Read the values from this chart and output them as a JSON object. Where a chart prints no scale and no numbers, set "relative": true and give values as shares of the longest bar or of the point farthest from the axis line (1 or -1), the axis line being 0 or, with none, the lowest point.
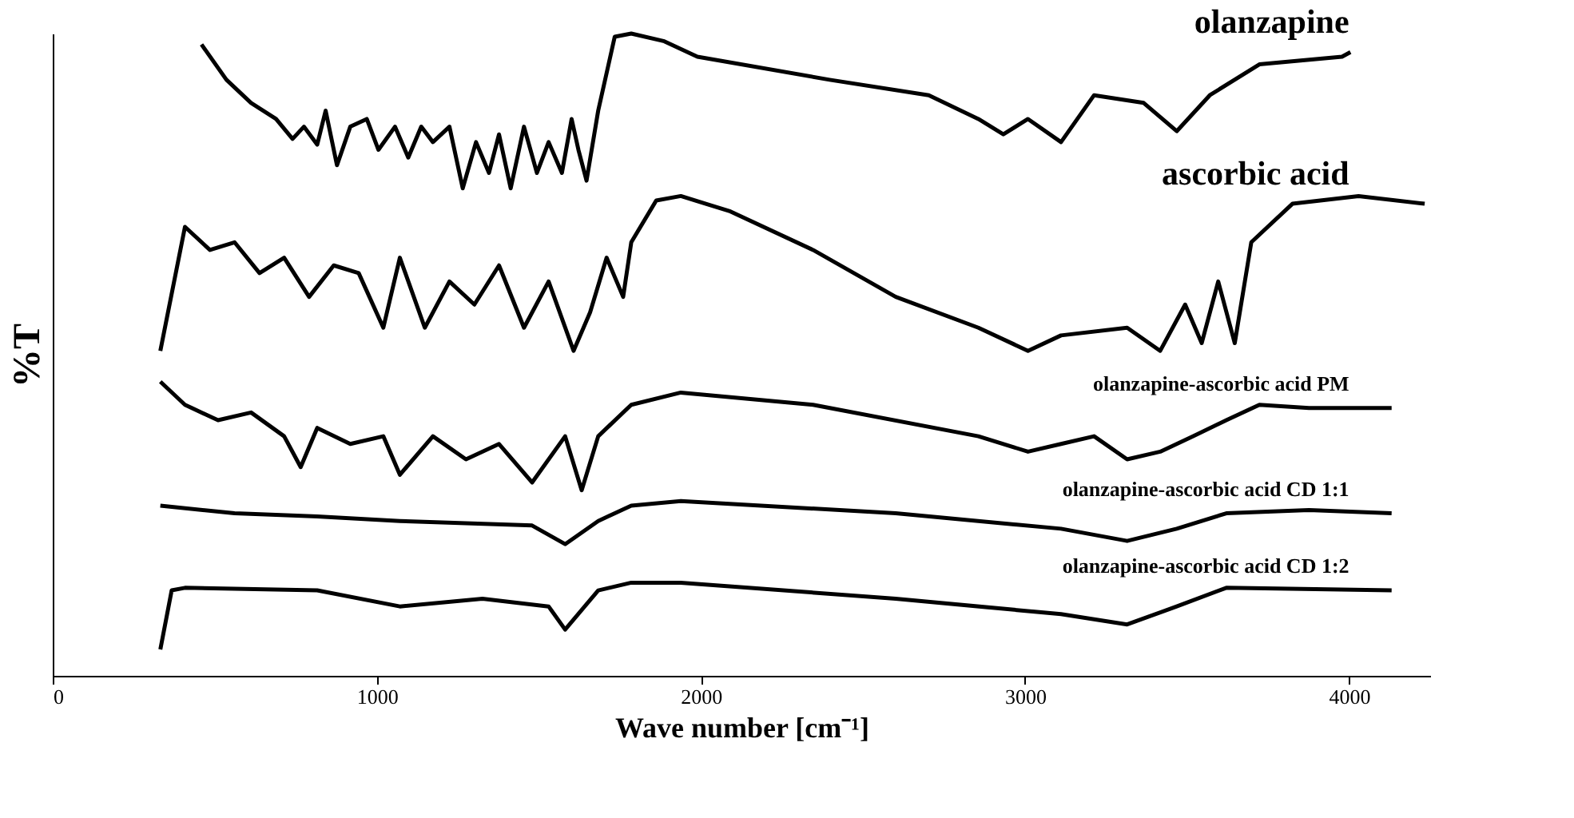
{
  "chart_data": {
    "type": "line",
    "relative": true,
    "xlabel": "Wave number [cm⁻¹]",
    "ylabel": "%T",
    "xlim": [
      0,
      4250
    ],
    "xticks": [
      0,
      1000,
      2000,
      3000,
      4000
    ],
    "tick_labels": "x",
    "grid": false,
    "legend": false,
    "line_style": "solid",
    "marker": "none",
    "series": [
      {
        "name": "olanzapine",
        "color": "#000000",
        "x": [
          459,
          536,
          612,
          689,
          740,
          775,
          816,
          842,
          877,
          918,
          969,
          1005,
          1056,
          1097,
          1137,
          1173,
          1224,
          1265,
          1306,
          1346,
          1377,
          1413,
          1454,
          1494,
          1530,
          1571,
          1601,
          1622,
          1647,
          1683,
          1734,
          1785,
          1887,
          1989,
          2397,
          2703,
          2856,
          2933,
          3009,
          3111,
          3213,
          3366,
          3468,
          3570,
          3723,
          3978,
          4004
        ],
        "values": [
          0.983,
          0.928,
          0.892,
          0.867,
          0.836,
          0.855,
          0.827,
          0.88,
          0.795,
          0.855,
          0.867,
          0.819,
          0.855,
          0.807,
          0.855,
          0.831,
          0.855,
          0.759,
          0.831,
          0.783,
          0.843,
          0.759,
          0.855,
          0.783,
          0.831,
          0.783,
          0.867,
          0.819,
          0.771,
          0.88,
          0.995,
          1.0,
          0.988,
          0.964,
          0.928,
          0.904,
          0.867,
          0.843,
          0.867,
          0.831,
          0.904,
          0.892,
          0.848,
          0.904,
          0.952,
          0.964,
          0.971
        ]
      },
      {
        "name": "ascorbic acid",
        "color": "#000000",
        "x": [
          332,
          408,
          485,
          561,
          638,
          714,
          791,
          867,
          944,
          1020,
          1071,
          1148,
          1224,
          1301,
          1377,
          1454,
          1530,
          1607,
          1658,
          1709,
          1760,
          1785,
          1862,
          1938,
          2091,
          2346,
          2601,
          2856,
          3009,
          3111,
          3315,
          3417,
          3494,
          3545,
          3596,
          3647,
          3698,
          3825,
          4029,
          4233
        ],
        "values": [
          0.506,
          0.699,
          0.663,
          0.675,
          0.627,
          0.651,
          0.59,
          0.639,
          0.627,
          0.542,
          0.651,
          0.542,
          0.614,
          0.578,
          0.639,
          0.542,
          0.614,
          0.506,
          0.566,
          0.651,
          0.59,
          0.675,
          0.74,
          0.747,
          0.723,
          0.663,
          0.59,
          0.542,
          0.506,
          0.53,
          0.542,
          0.506,
          0.578,
          0.518,
          0.614,
          0.518,
          0.675,
          0.735,
          0.747,
          0.735
        ]
      },
      {
        "name": "olanzapine-ascorbic acid PM",
        "color": "#000000",
        "x": [
          332,
          408,
          510,
          612,
          714,
          765,
          816,
          918,
          1020,
          1071,
          1173,
          1275,
          1377,
          1479,
          1581,
          1632,
          1683,
          1785,
          1938,
          2346,
          2856,
          3009,
          3111,
          3213,
          3315,
          3417,
          3519,
          3621,
          3723,
          3876,
          4131
        ],
        "values": [
          0.458,
          0.422,
          0.398,
          0.41,
          0.373,
          0.325,
          0.386,
          0.361,
          0.373,
          0.313,
          0.373,
          0.337,
          0.361,
          0.301,
          0.373,
          0.289,
          0.373,
          0.422,
          0.441,
          0.422,
          0.373,
          0.349,
          0.361,
          0.373,
          0.337,
          0.349,
          0.373,
          0.398,
          0.422,
          0.417,
          0.417
        ]
      },
      {
        "name": "olanzapine-ascorbic acid CD 1:1",
        "color": "#000000",
        "x": [
          332,
          561,
          816,
          1071,
          1479,
          1581,
          1683,
          1785,
          1938,
          2601,
          3111,
          3315,
          3468,
          3621,
          3876,
          4131
        ],
        "values": [
          0.265,
          0.253,
          0.248,
          0.241,
          0.234,
          0.205,
          0.241,
          0.265,
          0.272,
          0.253,
          0.229,
          0.21,
          0.229,
          0.253,
          0.258,
          0.253
        ]
      },
      {
        "name": "olanzapine-ascorbic acid CD 1:2",
        "color": "#000000",
        "x": [
          332,
          367,
          408,
          816,
          1071,
          1326,
          1530,
          1581,
          1683,
          1785,
          1938,
          2601,
          3111,
          3315,
          3468,
          3621,
          4131
        ],
        "values": [
          0.041,
          0.133,
          0.137,
          0.133,
          0.108,
          0.12,
          0.108,
          0.072,
          0.133,
          0.145,
          0.145,
          0.12,
          0.096,
          0.08,
          0.108,
          0.137,
          0.133
        ]
      }
    ]
  }
}
